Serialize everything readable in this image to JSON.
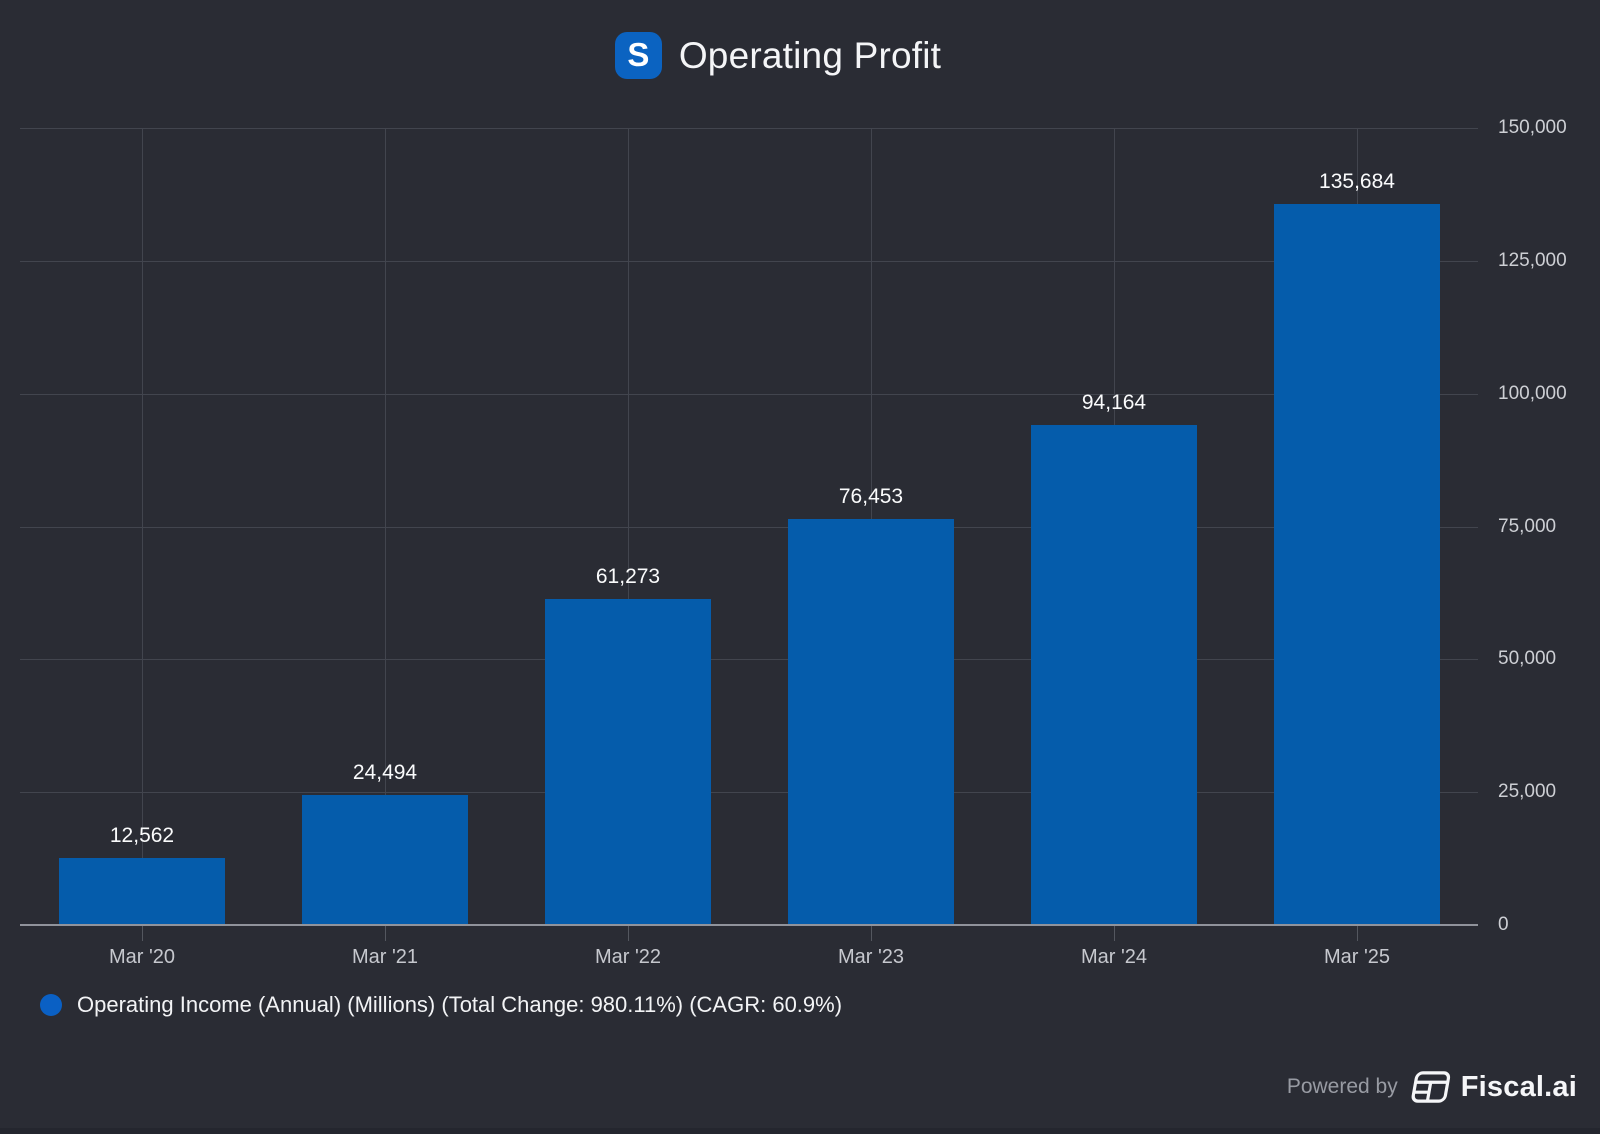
{
  "header": {
    "title": "Operating Profit",
    "logo_letter": "S"
  },
  "chart_data": {
    "type": "bar",
    "title": "Operating Profit",
    "categories": [
      "Mar '20",
      "Mar '21",
      "Mar '22",
      "Mar '23",
      "Mar '24",
      "Mar '25"
    ],
    "values": [
      12562,
      24494,
      61273,
      76453,
      94164,
      135684
    ],
    "value_labels": [
      "12,562",
      "24,494",
      "61,273",
      "76,453",
      "94,164",
      "135,684"
    ],
    "series_name": "Operating Income (Annual) (Millions) (Total Change: 980.11%) (CAGR: 60.9%)",
    "xlabel": "",
    "ylabel": "",
    "ylim": [
      0,
      150000
    ],
    "ytick_interval": 25000,
    "ytick_labels": [
      "0",
      "25,000",
      "50,000",
      "75,000",
      "100,000",
      "125,000",
      "150,000"
    ],
    "grid": true,
    "y_axis_side": "right",
    "legend_position": "bottom-left",
    "bar_color": "#055cab"
  },
  "legend": {
    "label": "Operating Income (Annual) (Millions) (Total Change: 980.11%) (CAGR: 60.9%)",
    "marker_color": "#0a60c4"
  },
  "footer": {
    "powered_by": "Powered by",
    "brand": "Fiscal.ai"
  },
  "colors": {
    "background": "#2a2c34",
    "bar": "#055cab",
    "logo": "#0b63c1",
    "accent": "#0a60c4",
    "gridline": "#42454e",
    "axis_line": "#90939b",
    "text_primary": "#f4f5f7",
    "text_axis": "#c6c8ce"
  }
}
